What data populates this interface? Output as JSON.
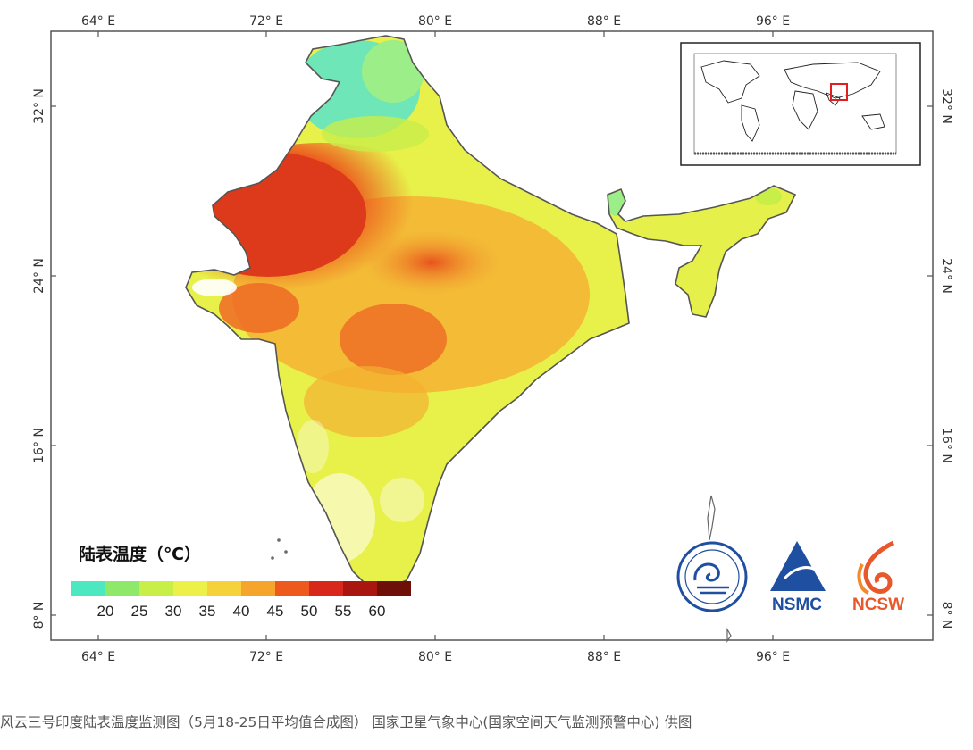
{
  "axes": {
    "top_lon_labels": [
      "64° E",
      "72° E",
      "80° E",
      "88° E",
      "96° E"
    ],
    "bottom_lon_labels": [
      "64° E",
      "72° E",
      "80° E",
      "88° E",
      "96° E"
    ],
    "left_lat_labels": [
      "32° N",
      "24° N",
      "16° N",
      "8° N"
    ],
    "right_lat_labels": [
      "32° N",
      "24° N",
      "16° N",
      "8° N"
    ]
  },
  "legend": {
    "title": "陆表温度（℃）",
    "ticks": [
      "20",
      "25",
      "30",
      "35",
      "40",
      "45",
      "50",
      "55",
      "60"
    ],
    "colors": [
      "#4de8c0",
      "#8ee86a",
      "#c8ee48",
      "#eef04a",
      "#f5d23a",
      "#f5a52c",
      "#ee5a1e",
      "#d8281c",
      "#a8160f",
      "#6e1008"
    ]
  },
  "logos": {
    "nsmc": "NSMC",
    "ncsw": "NCSW"
  },
  "caption": "风云三号印度陆表温度监测图（5月18-25日平均值合成图） 国家卫星气象中心(国家空间天气监测预警中心) 供图",
  "colors": {
    "border": "#555555",
    "cool": "#6fe6b8",
    "mild": "#e6f048",
    "warm": "#f2b638",
    "hot": "#ec5a1e",
    "very_hot": "#d02a1a",
    "nsmc_blue": "#1f4fa0",
    "ncsw_orange": "#e8582a"
  }
}
